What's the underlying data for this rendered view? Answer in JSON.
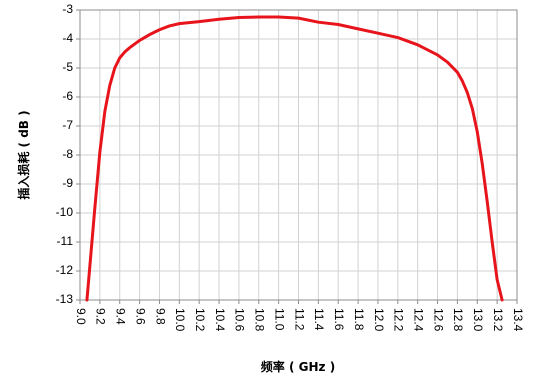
{
  "chart_data": {
    "type": "line",
    "title": "",
    "xlabel": "频率 ( GHz )",
    "ylabel": "插入损耗 ( dB )",
    "xlim": [
      9.0,
      13.4
    ],
    "ylim": [
      -13,
      -3
    ],
    "x_ticks": [
      9.0,
      9.2,
      9.4,
      9.6,
      9.8,
      10.0,
      10.2,
      10.4,
      10.6,
      10.8,
      11.0,
      11.2,
      11.4,
      11.6,
      11.8,
      12.0,
      12.2,
      12.4,
      12.6,
      12.8,
      13.0,
      13.2,
      13.4
    ],
    "x_tick_labels": [
      "9.0",
      "9.2",
      "9.4",
      "9.6",
      "9.8",
      "10.0",
      "10.2",
      "10.4",
      "10.6",
      "10.8",
      "11.0",
      "11.2",
      "11.4",
      "11.6",
      "11.8",
      "12.0",
      "12.2",
      "12.4",
      "12.6",
      "12.8",
      "13.0",
      "13.2",
      "13.4"
    ],
    "y_ticks": [
      -3,
      -4,
      -5,
      -6,
      -7,
      -8,
      -9,
      -10,
      -11,
      -12,
      -13
    ],
    "y_tick_labels": [
      "-3",
      "-4",
      "-5",
      "-6",
      "-7",
      "-8",
      "-9",
      "-10",
      "-11",
      "-12",
      "-13"
    ],
    "grid": true,
    "series": [
      {
        "color": "#e8141c",
        "x": [
          9.07,
          9.1,
          9.15,
          9.2,
          9.25,
          9.3,
          9.35,
          9.4,
          9.45,
          9.5,
          9.6,
          9.7,
          9.8,
          9.9,
          10.0,
          10.2,
          10.4,
          10.6,
          10.8,
          11.0,
          11.2,
          11.4,
          11.6,
          11.8,
          12.0,
          12.2,
          12.4,
          12.6,
          12.7,
          12.8,
          12.85,
          12.9,
          12.95,
          13.0,
          13.05,
          13.1,
          13.15,
          13.2,
          13.25
        ],
        "y": [
          -13.0,
          -11.8,
          -9.8,
          -7.9,
          -6.5,
          -5.6,
          -5.0,
          -4.65,
          -4.45,
          -4.3,
          -4.05,
          -3.85,
          -3.68,
          -3.55,
          -3.47,
          -3.4,
          -3.32,
          -3.26,
          -3.24,
          -3.24,
          -3.28,
          -3.42,
          -3.5,
          -3.65,
          -3.8,
          -3.95,
          -4.2,
          -4.55,
          -4.8,
          -5.15,
          -5.45,
          -5.85,
          -6.4,
          -7.2,
          -8.3,
          -9.6,
          -11.0,
          -12.3,
          -13.0
        ]
      }
    ]
  }
}
